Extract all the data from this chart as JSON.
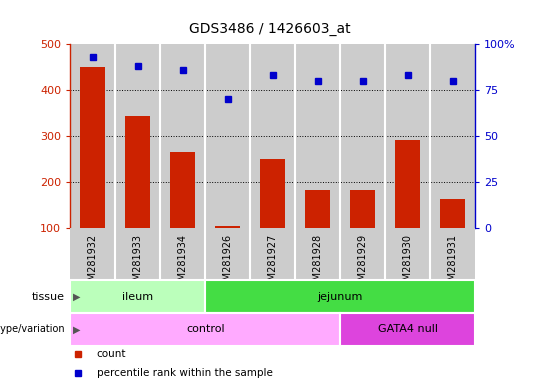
{
  "title": "GDS3486 / 1426603_at",
  "samples": [
    "GSM281932",
    "GSM281933",
    "GSM281934",
    "GSM281926",
    "GSM281927",
    "GSM281928",
    "GSM281929",
    "GSM281930",
    "GSM281931"
  ],
  "counts": [
    450,
    345,
    265,
    105,
    250,
    183,
    183,
    293,
    165
  ],
  "percentile_ranks": [
    93,
    88,
    86,
    70,
    83,
    80,
    80,
    83,
    80
  ],
  "ymin": 100,
  "ymax": 500,
  "yticks": [
    100,
    200,
    300,
    400,
    500
  ],
  "y2min": 0,
  "y2max": 100,
  "y2ticks": [
    0,
    25,
    50,
    75,
    100
  ],
  "y2tick_labels": [
    "0",
    "25",
    "50",
    "75",
    "100%"
  ],
  "bar_color": "#cc2200",
  "dot_color": "#0000cc",
  "tissue_labels": [
    {
      "label": "ileum",
      "start": 0,
      "end": 3,
      "color": "#bbffbb"
    },
    {
      "label": "jejunum",
      "start": 3,
      "end": 9,
      "color": "#44dd44"
    }
  ],
  "genotype_labels": [
    {
      "label": "control",
      "start": 0,
      "end": 6,
      "color": "#ffaaff"
    },
    {
      "label": "GATA4 null",
      "start": 6,
      "end": 9,
      "color": "#dd44dd"
    }
  ],
  "legend_items": [
    {
      "label": "count",
      "color": "#cc2200"
    },
    {
      "label": "percentile rank within the sample",
      "color": "#0000cc"
    }
  ],
  "col_bg_color": "#cccccc",
  "col_border_color": "#ffffff"
}
